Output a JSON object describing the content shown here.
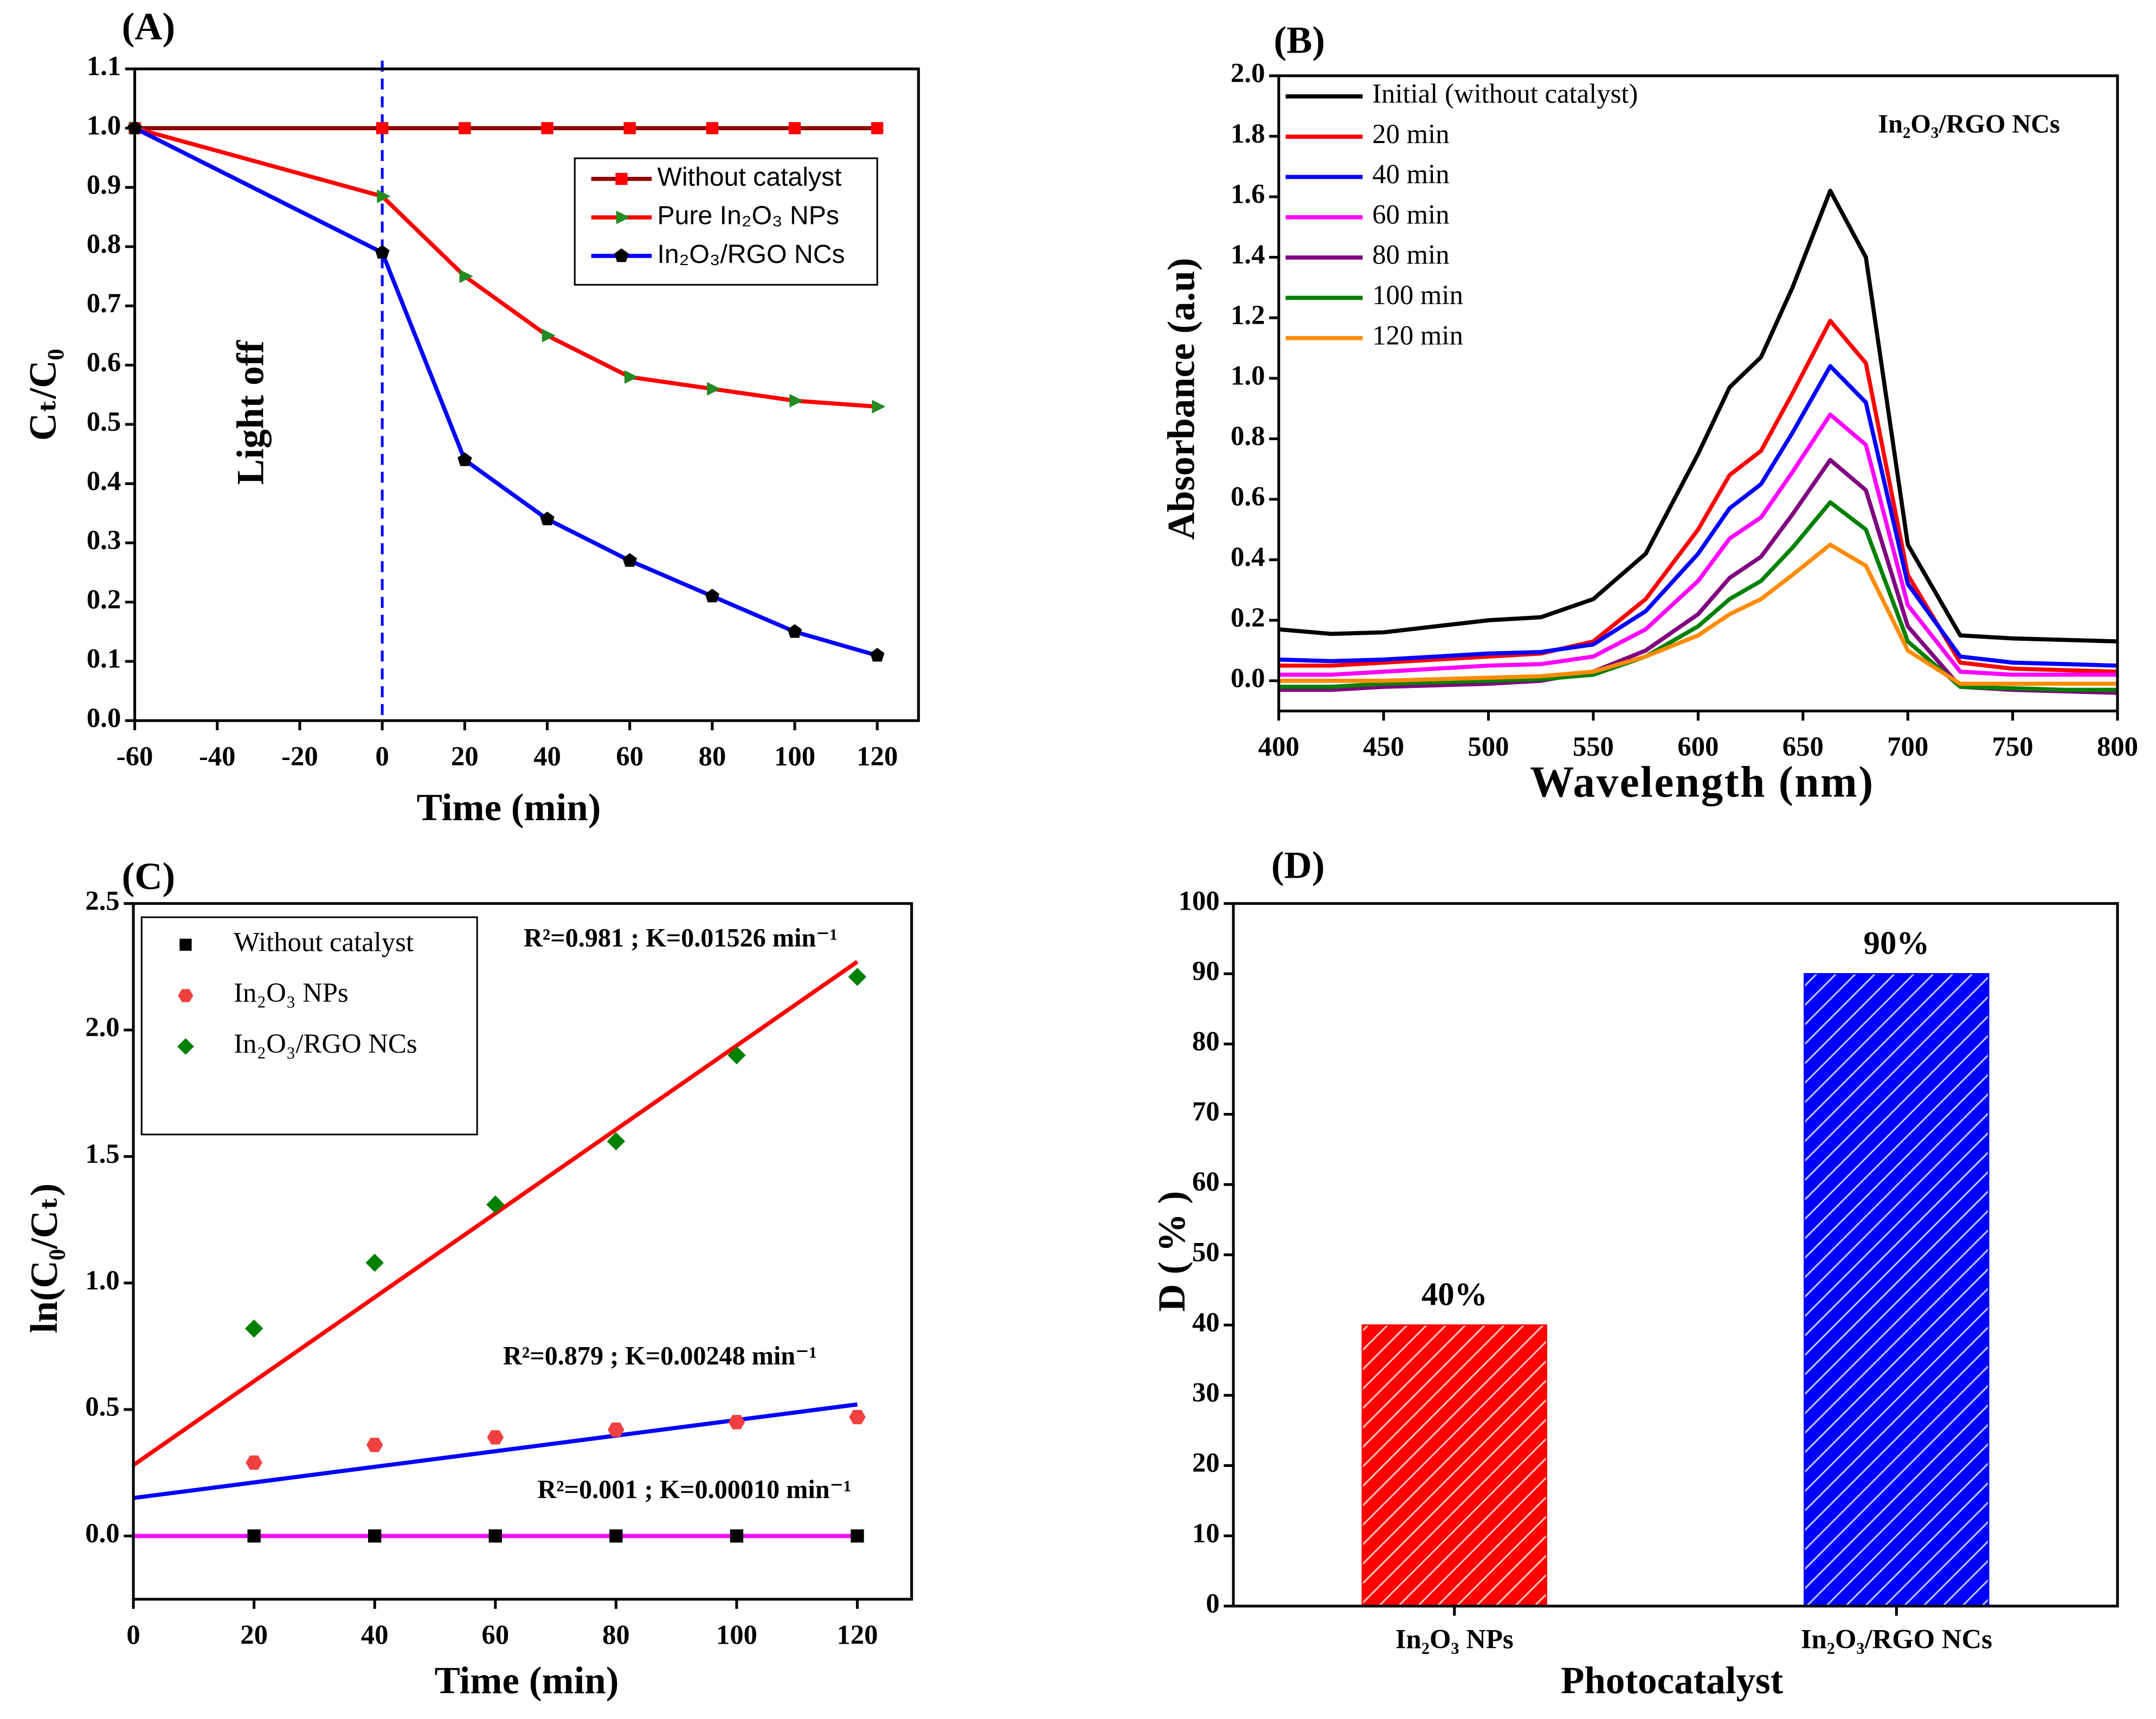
{
  "chart_data": [
    {
      "type": "line",
      "title": "(A)",
      "x_label": "Time (min)",
      "y_label": "Cₜ/C₀",
      "x": [
        -60,
        0,
        20,
        40,
        60,
        80,
        100,
        120
      ],
      "series": [
        {
          "name": "Without catalyst",
          "color": "#8b0000",
          "marker": "square",
          "marker_color": "#ff0000",
          "values": [
            1.0,
            1.0,
            1.0,
            1.0,
            1.0,
            1.0,
            1.0,
            1.0
          ]
        },
        {
          "name": "Pure In₂O₃ NPs",
          "color": "#ff0000",
          "marker": "triangle",
          "marker_color": "#228b22",
          "values": [
            1.0,
            0.885,
            0.75,
            0.65,
            0.58,
            0.56,
            0.54,
            0.53
          ]
        },
        {
          "name": "In₂O₃/RGO  NCs",
          "color": "#0000ff",
          "marker": "pentagon",
          "marker_color": "#000000",
          "values": [
            1.0,
            0.79,
            0.44,
            0.34,
            0.27,
            0.21,
            0.15,
            0.11
          ]
        }
      ],
      "xlim": [
        -60,
        130
      ],
      "ylim": [
        0,
        1.1
      ],
      "xticks": [
        -60,
        -40,
        -20,
        0,
        20,
        40,
        60,
        80,
        100,
        120
      ],
      "yticks": [
        {
          "value": 0,
          "label": "0.0"
        },
        {
          "value": 0.1,
          "label": "0.1"
        },
        {
          "value": 0.2,
          "label": "0.2"
        },
        {
          "value": 0.3,
          "label": "0.3"
        },
        {
          "value": 0.4,
          "label": "0.4"
        },
        {
          "value": 0.5,
          "label": "0.5"
        },
        {
          "value": 0.6,
          "label": "0.6"
        },
        {
          "value": 0.7,
          "label": "0.7"
        },
        {
          "value": 0.8,
          "label": "0.8"
        },
        {
          "value": 0.9,
          "label": "0.9"
        },
        {
          "value": 1.0,
          "label": "1.0"
        },
        {
          "value": 1.1,
          "label": "1.1"
        }
      ],
      "vline": 0,
      "vline_color": "#0000ff",
      "annotations": [
        "Light off"
      ],
      "legend": "upper right",
      "grid": false
    },
    {
      "type": "line",
      "title": "(B)",
      "x_label": "Wavelength (nm)",
      "y_label": "Absorbance (a.u)",
      "x": [
        400,
        425,
        450,
        475,
        500,
        525,
        550,
        575,
        600,
        615,
        630,
        645,
        663,
        680,
        700,
        725,
        750,
        775,
        800
      ],
      "series": [
        {
          "name": "Initial (without catalyst)",
          "color": "#000000",
          "values": [
            0.17,
            0.155,
            0.16,
            0.18,
            0.2,
            0.21,
            0.27,
            0.42,
            0.75,
            0.97,
            1.07,
            1.3,
            1.62,
            1.4,
            0.45,
            0.15,
            0.14,
            0.135,
            0.13
          ]
        },
        {
          "name": "20 min",
          "color": "#ff0000",
          "values": [
            0.05,
            0.05,
            0.06,
            0.07,
            0.08,
            0.09,
            0.13,
            0.27,
            0.5,
            0.68,
            0.76,
            0.95,
            1.19,
            1.05,
            0.35,
            0.06,
            0.04,
            0.035,
            0.03
          ]
        },
        {
          "name": "40 min",
          "color": "#0000ff",
          "values": [
            0.07,
            0.065,
            0.07,
            0.08,
            0.09,
            0.095,
            0.12,
            0.23,
            0.42,
            0.57,
            0.65,
            0.82,
            1.04,
            0.92,
            0.32,
            0.08,
            0.06,
            0.055,
            0.05
          ]
        },
        {
          "name": "60 min",
          "color": "#ff00ff",
          "values": [
            0.02,
            0.02,
            0.03,
            0.04,
            0.05,
            0.055,
            0.08,
            0.17,
            0.33,
            0.47,
            0.54,
            0.69,
            0.88,
            0.78,
            0.25,
            0.03,
            0.02,
            0.02,
            0.02
          ]
        },
        {
          "name": "80 min",
          "color": "#800080",
          "values": [
            -0.03,
            -0.03,
            -0.02,
            -0.015,
            -0.01,
            0,
            0.03,
            0.1,
            0.22,
            0.34,
            0.41,
            0.55,
            0.73,
            0.63,
            0.18,
            -0.02,
            -0.03,
            -0.035,
            -0.04
          ]
        },
        {
          "name": "100 min",
          "color": "#008000",
          "values": [
            -0.02,
            -0.02,
            -0.01,
            -0.005,
            0,
            0.005,
            0.02,
            0.08,
            0.18,
            0.27,
            0.33,
            0.44,
            0.59,
            0.5,
            0.13,
            -0.02,
            -0.025,
            -0.03,
            -0.03
          ]
        },
        {
          "name": "120 min",
          "color": "#ff8c00",
          "values": [
            0,
            0,
            0,
            0.005,
            0.01,
            0.015,
            0.03,
            0.08,
            0.15,
            0.22,
            0.27,
            0.35,
            0.45,
            0.38,
            0.1,
            -0.01,
            -0.01,
            -0.01,
            -0.01
          ]
        }
      ],
      "xlim": [
        400,
        800
      ],
      "ylim": [
        -0.1,
        2.0
      ],
      "xticks": [
        400,
        450,
        500,
        550,
        600,
        650,
        700,
        750,
        800
      ],
      "yticks": [
        {
          "value": 0,
          "label": "0.0"
        },
        {
          "value": 0.2,
          "label": "0.2"
        },
        {
          "value": 0.4,
          "label": "0.4"
        },
        {
          "value": 0.6,
          "label": "0.6"
        },
        {
          "value": 0.8,
          "label": "0.8"
        },
        {
          "value": 1.0,
          "label": "1.0"
        },
        {
          "value": 1.2,
          "label": "1.2"
        },
        {
          "value": 1.4,
          "label": "1.4"
        },
        {
          "value": 1.6,
          "label": "1.6"
        },
        {
          "value": 1.8,
          "label": "1.8"
        },
        {
          "value": 2.0,
          "label": "2.0"
        }
      ],
      "annotations": [
        "In₂O₃/RGO NCs"
      ],
      "legend": "upper left",
      "grid": false
    },
    {
      "type": "scatter",
      "title": "(C)",
      "x_label": "Time (min)",
      "y_label": "ln(C₀/Cₜ)",
      "x": [
        20,
        40,
        60,
        80,
        100,
        120
      ],
      "series": [
        {
          "name": "Without catalyst",
          "marker": "square",
          "color": "#000000",
          "values": [
            0,
            0,
            0,
            0,
            0,
            0
          ]
        },
        {
          "name": "In₂O₃ NPs",
          "marker": "hexagon",
          "color": "#f04040",
          "values": [
            0.29,
            0.36,
            0.39,
            0.42,
            0.45,
            0.47
          ]
        },
        {
          "name": "In₂O₃/RGO NCs",
          "marker": "diamond",
          "color": "#008000",
          "values": [
            0.82,
            1.08,
            1.31,
            1.56,
            1.9,
            2.21
          ]
        }
      ],
      "fits": [
        {
          "color": "#ff0000",
          "x": [
            0,
            120
          ],
          "values": [
            0.28,
            2.27
          ]
        },
        {
          "color": "#0000ff",
          "x": [
            0,
            120
          ],
          "values": [
            0.15,
            0.52
          ]
        },
        {
          "color": "#ff00ff",
          "x": [
            0,
            120
          ],
          "values": [
            0,
            0
          ]
        }
      ],
      "annotations": [
        "R²=0.981 ; K=0.01526 min⁻¹",
        "R²=0.879 ; K=0.00248 min⁻¹",
        "R²=0.001 ; K=0.00010 min⁻¹"
      ],
      "xlim": [
        0,
        129
      ],
      "ylim": [
        -0.25,
        2.5
      ],
      "xticks": [
        0,
        20,
        40,
        60,
        80,
        100,
        120
      ],
      "yticks": [
        {
          "value": 0,
          "label": "0.0"
        },
        {
          "value": 0.5,
          "label": "0.5"
        },
        {
          "value": 1.0,
          "label": "1.0"
        },
        {
          "value": 1.5,
          "label": "1.5"
        },
        {
          "value": 2.0,
          "label": "2.0"
        },
        {
          "value": 2.5,
          "label": "2.5"
        }
      ],
      "legend": "upper left",
      "grid": false
    },
    {
      "type": "bar",
      "title": "(D)",
      "x_label": "Photocatalyst",
      "y_label": "D ( % )",
      "categories": [
        "In₂O₃ NPs",
        "In₂O₃/RGO NCs"
      ],
      "values": [
        40,
        90
      ],
      "value_labels": [
        "40%",
        "90%"
      ],
      "colors": [
        "#ff0000",
        "#0000ff"
      ],
      "hatch": true,
      "ylim": [
        0,
        100
      ],
      "yticks": [
        0,
        10,
        20,
        30,
        40,
        50,
        60,
        70,
        80,
        90,
        100
      ],
      "grid": false
    }
  ]
}
